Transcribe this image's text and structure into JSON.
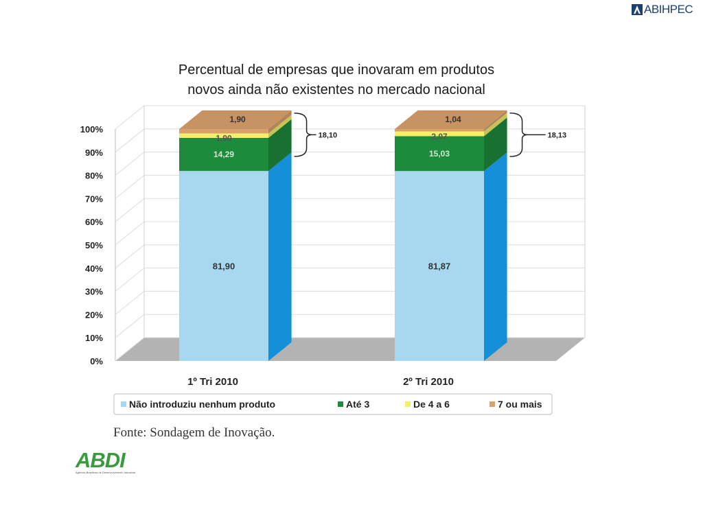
{
  "header": {
    "logo_text": "ABIHPEC",
    "title_line1": "Percentual de empresas que inovaram em produtos",
    "title_line2": "novos ainda não existentes no mercado nacional"
  },
  "chart_data": {
    "type": "bar",
    "stacked": true,
    "three_d": true,
    "categories": [
      "1º Tri 2010",
      "2º Tri 2010"
    ],
    "series": [
      {
        "name": "Não introduziu nenhum produto",
        "values": [
          81.9,
          81.87
        ],
        "labels": [
          "81,90",
          "81,87"
        ],
        "color": "#a8d8f0"
      },
      {
        "name": "Até 3",
        "values": [
          14.29,
          15.03
        ],
        "labels": [
          "14,29",
          "15,03"
        ],
        "color": "#1e8a3c"
      },
      {
        "name": "De 4 a 6",
        "values": [
          1.9,
          2.07
        ],
        "labels": [
          "1,90",
          "2,07"
        ],
        "color": "#f3ef6a"
      },
      {
        "name": "7 ou mais",
        "values": [
          1.9,
          1.04
        ],
        "labels": [
          "1,90",
          "1,04"
        ],
        "color": "#d9a06a"
      }
    ],
    "bracket_labels": [
      "18,10",
      "18,13"
    ],
    "y_ticks": [
      "0%",
      "10%",
      "20%",
      "30%",
      "40%",
      "50%",
      "60%",
      "70%",
      "80%",
      "90%",
      "100%"
    ],
    "ylim": [
      0,
      100
    ],
    "grid": true,
    "legend_position": "bottom"
  },
  "source_text": "Fonte: Sondagem de Inovação.",
  "footer_logo": {
    "word": "ABDI",
    "subtitle": "Agência Brasileira de Desenvolvimento Industrial"
  }
}
